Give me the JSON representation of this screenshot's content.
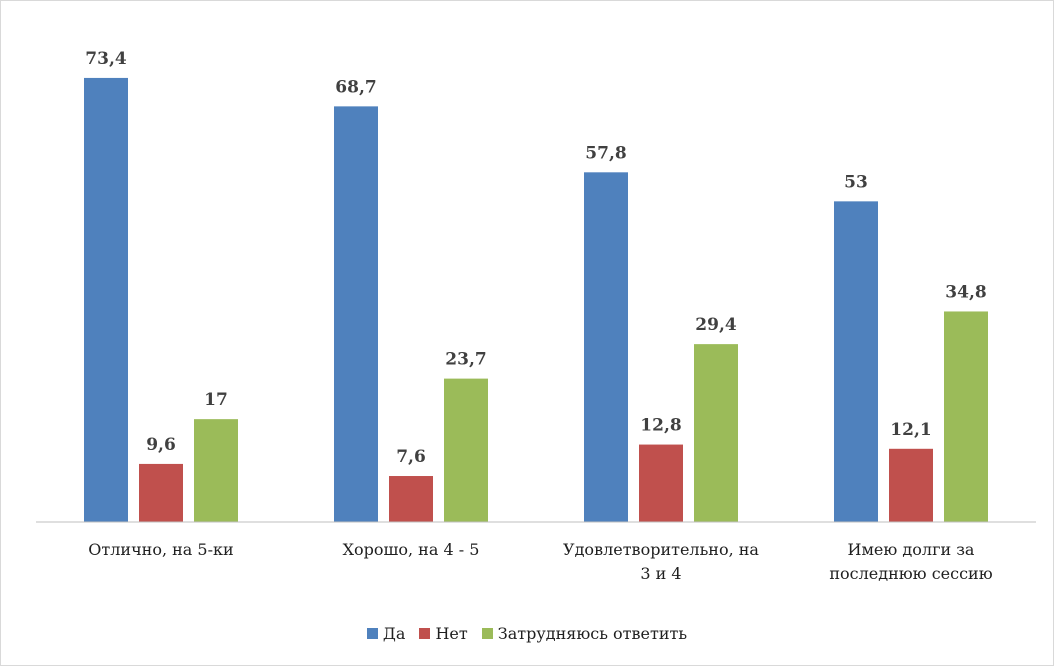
{
  "chart_data": {
    "type": "bar",
    "categories": [
      "Отлично, на 5-ки",
      "Хорошо, на 4 - 5",
      "Удовлетворительно, на 3 и 4",
      "Имею долги за последнюю сессию"
    ],
    "series": [
      {
        "name": "Да",
        "color": "#4f81bd",
        "values": [
          73.4,
          68.7,
          57.8,
          53
        ],
        "value_labels": [
          "73,4",
          "68,7",
          "57,8",
          "53"
        ]
      },
      {
        "name": "Нет",
        "color": "#c0504d",
        "values": [
          9.6,
          7.6,
          12.8,
          12.1
        ],
        "value_labels": [
          "9,6",
          "7,6",
          "12,8",
          "12,1"
        ]
      },
      {
        "name": "Затрудняюсь ответить",
        "color": "#9bbb59",
        "values": [
          17,
          23.7,
          29.4,
          34.8
        ],
        "value_labels": [
          "17",
          "23,7",
          "29,4",
          "34,8"
        ]
      }
    ],
    "ylim": [
      0,
      80
    ],
    "legend": "bottom"
  }
}
